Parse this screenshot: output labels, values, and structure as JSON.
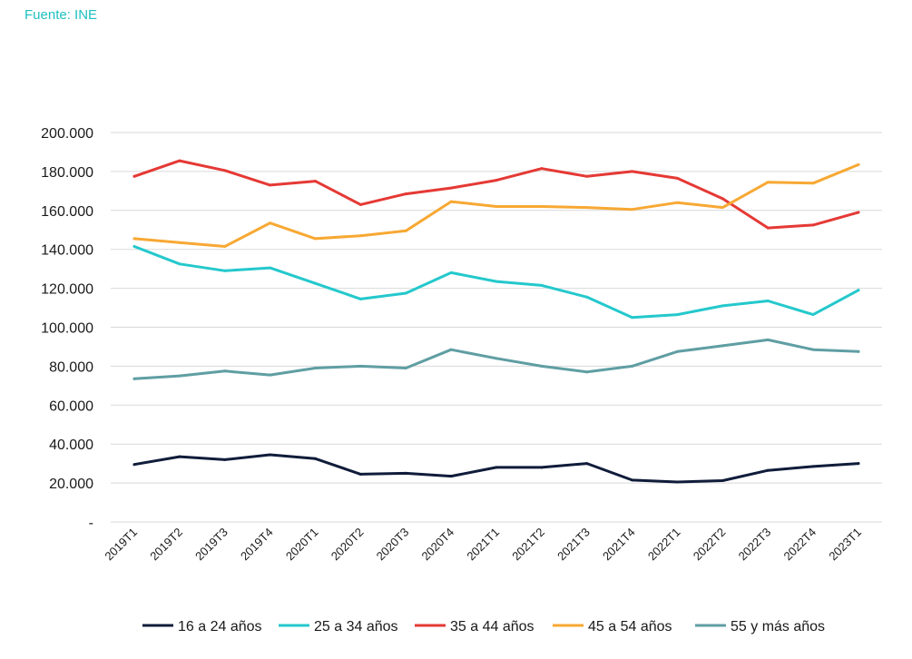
{
  "source": "Fuente: INE",
  "chart_data": {
    "type": "line",
    "categories": [
      "2019T1",
      "2019T2",
      "2019T3",
      "2019T4",
      "2020T1",
      "2020T2",
      "2020T3",
      "2020T4",
      "2021T1",
      "2021T2",
      "2021T3",
      "2021T4",
      "2022T1",
      "2022T2",
      "2022T3",
      "2022T4",
      "2023T1"
    ],
    "ylim": [
      0,
      200000
    ],
    "yticks": [
      0,
      20000,
      40000,
      60000,
      80000,
      100000,
      120000,
      140000,
      160000,
      180000,
      200000
    ],
    "ytick_labels": [
      "-",
      "20.000",
      "40.000",
      "60.000",
      "80.000",
      "100.000",
      "120.000",
      "140.000",
      "160.000",
      "180.000",
      "200.000"
    ],
    "grid": true,
    "legend_position": "bottom",
    "series": [
      {
        "name": "16 a 24 años",
        "color": "#101c3a",
        "values": [
          29500,
          33500,
          32000,
          34500,
          32500,
          24500,
          25000,
          23500,
          28000,
          28000,
          30000,
          21500,
          20500,
          21200,
          26500,
          28500,
          30000
        ]
      },
      {
        "name": "25 a 34 años",
        "color": "#24c8cc",
        "values": [
          141500,
          132500,
          129000,
          130500,
          122500,
          114500,
          117500,
          128000,
          123500,
          121500,
          115500,
          105000,
          106500,
          111000,
          113500,
          106500,
          119000
        ]
      },
      {
        "name": "35 a 44 años",
        "color": "#e53935",
        "values": [
          177500,
          185500,
          180500,
          173000,
          175000,
          163000,
          168500,
          171500,
          175500,
          181500,
          177500,
          180000,
          176500,
          166000,
          151000,
          152500,
          159000
        ]
      },
      {
        "name": "45 a 54 años",
        "color": "#f7a833",
        "values": [
          145500,
          143500,
          141500,
          153500,
          145500,
          147000,
          149500,
          164500,
          162000,
          162000,
          161500,
          160500,
          164000,
          161500,
          174500,
          174000,
          183500
        ]
      },
      {
        "name": "55 y más años",
        "color": "#5f9ea3",
        "values": [
          73500,
          75000,
          77500,
          75500,
          79000,
          80000,
          79000,
          88500,
          84000,
          80000,
          77000,
          80000,
          87500,
          90500,
          93500,
          88500,
          87500
        ]
      }
    ]
  }
}
